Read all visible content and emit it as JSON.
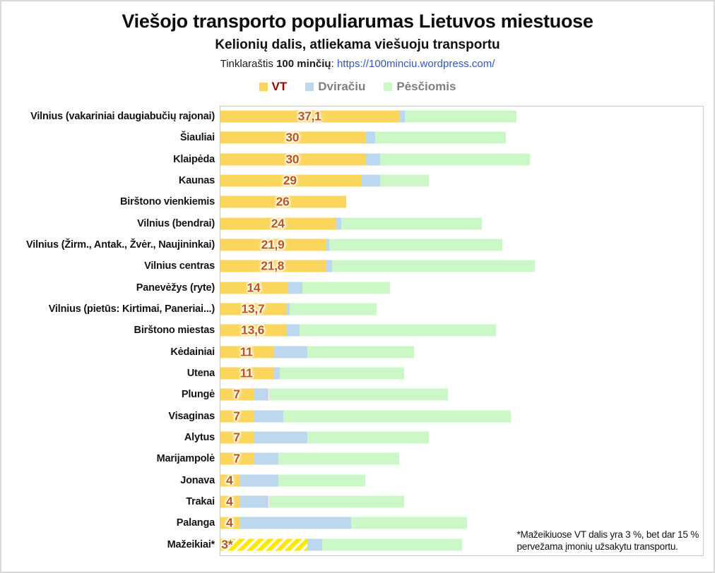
{
  "header": {
    "title": "Viešojo transporto populiarumas Lietuvos miestuose",
    "subtitle": "Kelionių dalis, atliekama viešuoju transportu",
    "source_prefix": "Tinklaraštis ",
    "source_name": "100 minčių",
    "source_sep": ": ",
    "source_url": "https://100minciu.wordpress.com/"
  },
  "legend": [
    {
      "label": "VT",
      "color": "#FBD65D"
    },
    {
      "label": "Dviračiu",
      "color": "#BDD7EE"
    },
    {
      "label": "Pėsčiomis",
      "color": "#CCF8C8"
    }
  ],
  "footnote": {
    "line1": "*Mažeikiuose VT dalis yra 3 %, bet dar 15 %",
    "line2": "pervežama įmonių užsakytu transportu."
  },
  "chart_data": {
    "type": "bar",
    "orientation": "horizontal",
    "stacked": true,
    "xlim": [
      0,
      100
    ],
    "grid": false,
    "series_names": [
      "VT",
      "Dviračiu",
      "Pėsčiomis"
    ],
    "colors": {
      "vt": "#FBD65D",
      "bike": "#BDD7EE",
      "walk": "#CCF8C8",
      "hatch_yellow": "#FFE800",
      "hatch_white": "#FFFFFF",
      "value_label": "#BE5514",
      "legend_vt_text": "#9B0000",
      "legend_gray_text": "#7F7F7F",
      "link": "#3257BE",
      "plot_border": "#C8C8C8"
    },
    "rows": [
      {
        "city": "Vilnius (vakariniai daugiabučių rajonai)",
        "vt_label": "37,1",
        "vt": 37.1,
        "bike": 1,
        "walk": 23
      },
      {
        "city": "Šiauliai",
        "vt_label": "30",
        "vt": 30,
        "bike": 2,
        "walk": 27
      },
      {
        "city": "Klaipėda",
        "vt_label": "30",
        "vt": 30,
        "bike": 3,
        "walk": 31
      },
      {
        "city": "Kaunas",
        "vt_label": "29",
        "vt": 29,
        "bike": 4,
        "walk": 10
      },
      {
        "city": "Birštono vienkiemis",
        "vt_label": "26",
        "vt": 26,
        "bike": 0,
        "walk": 0
      },
      {
        "city": "Vilnius (bendrai)",
        "vt_label": "24",
        "vt": 24,
        "bike": 1,
        "walk": 29
      },
      {
        "city": "Vilnius (Žirm., Antak., Žvėr., Naujininkai)",
        "vt_label": "21,9",
        "vt": 21.9,
        "bike": 0.6,
        "walk": 35.7
      },
      {
        "city": "Vilnius centras",
        "vt_label": "21,8",
        "vt": 21.8,
        "bike": 1.3,
        "walk": 41.9
      },
      {
        "city": "Panevėžys (ryte)",
        "vt_label": "14",
        "vt": 14,
        "bike": 3,
        "walk": 18
      },
      {
        "city": "Vilnius (pietūs: Kirtimai, Paneriai...)",
        "vt_label": "13,7",
        "vt": 13.7,
        "bike": 0.6,
        "walk": 17.9
      },
      {
        "city": "Birštono miestas",
        "vt_label": "13,6",
        "vt": 13.6,
        "bike": 2.8,
        "walk": 40.6
      },
      {
        "city": "Kėdainiai",
        "vt_label": "11",
        "vt": 11,
        "bike": 7,
        "walk": 22
      },
      {
        "city": "Utena",
        "vt_label": "11",
        "vt": 11,
        "bike": 1.3,
        "walk": 25.7
      },
      {
        "city": "Plungė",
        "vt_label": "7",
        "vt": 7,
        "bike": 3,
        "walk": 37
      },
      {
        "city": "Visaginas",
        "vt_label": "7",
        "vt": 7,
        "bike": 6,
        "walk": 47
      },
      {
        "city": "Alytus",
        "vt_label": "7",
        "vt": 7,
        "bike": 11,
        "walk": 25
      },
      {
        "city": "Marijampolė",
        "vt_label": "7",
        "vt": 7,
        "bike": 5,
        "walk": 25
      },
      {
        "city": "Jonava",
        "vt_label": "4",
        "vt": 4,
        "bike": 8,
        "walk": 18
      },
      {
        "city": "Trakai",
        "vt_label": "4",
        "vt": 4,
        "bike": 6,
        "walk": 28
      },
      {
        "city": "Palanga",
        "vt_label": "4",
        "vt": 4,
        "bike": 23,
        "walk": 24
      },
      {
        "city": "Mažeikiai*",
        "vt_label": "3*",
        "vt": 3,
        "vt_bar": 18,
        "hatched": true,
        "bike": 3,
        "walk": 29
      }
    ],
    "mazeikiai_note": {
      "hatched_bar_total": 18,
      "vt_actual": 3,
      "company_transport": 15
    }
  }
}
